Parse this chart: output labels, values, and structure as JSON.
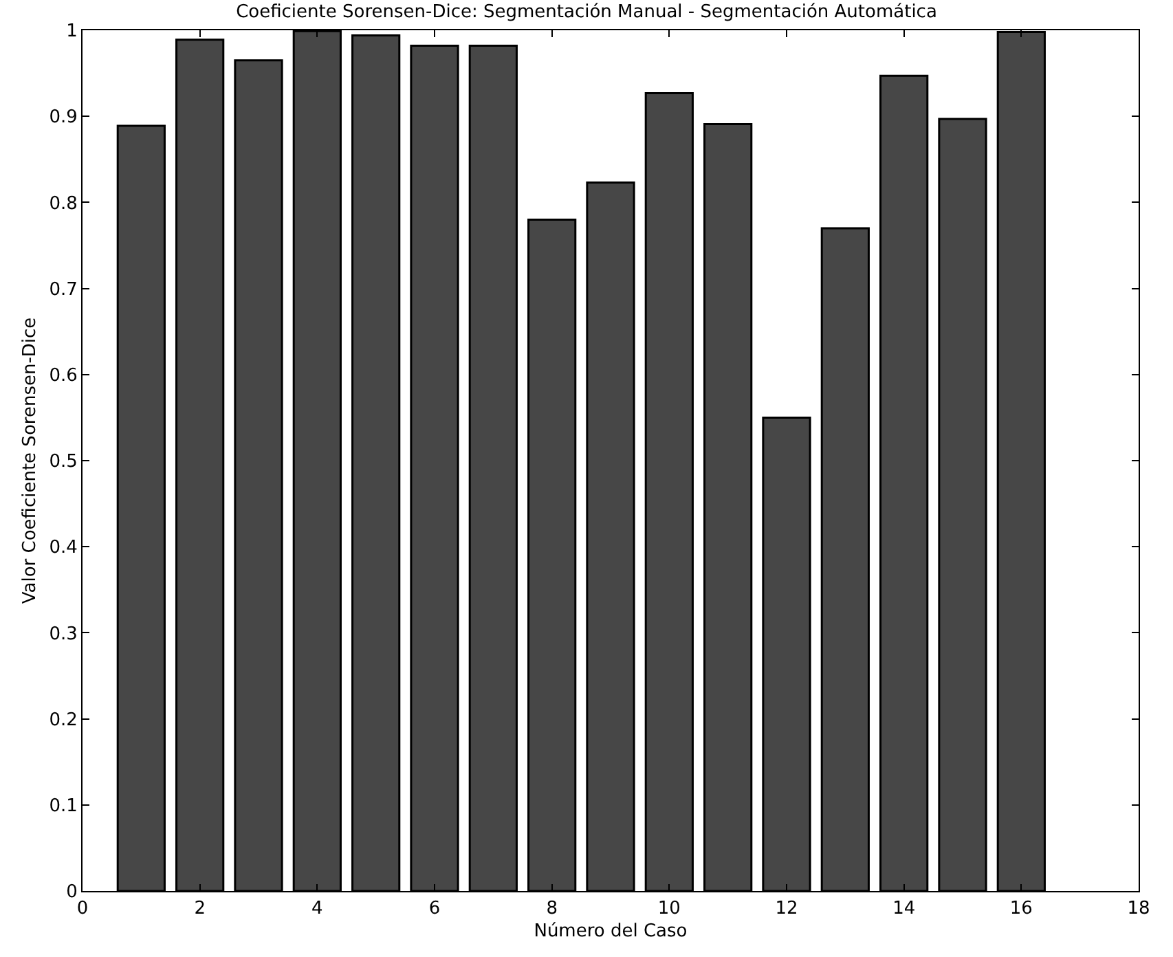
{
  "chart_data": {
    "type": "bar",
    "title": "Coeficiente Sorensen-Dice: Segmentación Manual - Segmentación Automática",
    "xlabel": "Número del Caso",
    "ylabel": "Valor Coeficiente Sorensen-Dice",
    "x": [
      1,
      2,
      3,
      4,
      5,
      6,
      7,
      8,
      9,
      10,
      11,
      12,
      13,
      14,
      15,
      16
    ],
    "values": [
      0.889,
      0.989,
      0.965,
      0.999,
      0.994,
      0.982,
      0.982,
      0.78,
      0.823,
      0.927,
      0.891,
      0.55,
      0.77,
      0.947,
      0.897,
      0.998
    ],
    "color": "#474747",
    "xlim": [
      0,
      18
    ],
    "xticks": [
      0,
      2,
      4,
      6,
      8,
      10,
      12,
      14,
      16,
      18
    ],
    "ylim": [
      0,
      1
    ],
    "yticks": [
      0,
      0.1,
      0.2,
      0.3,
      0.4,
      0.5,
      0.6,
      0.7,
      0.8,
      0.9,
      1
    ],
    "legend": false
  }
}
